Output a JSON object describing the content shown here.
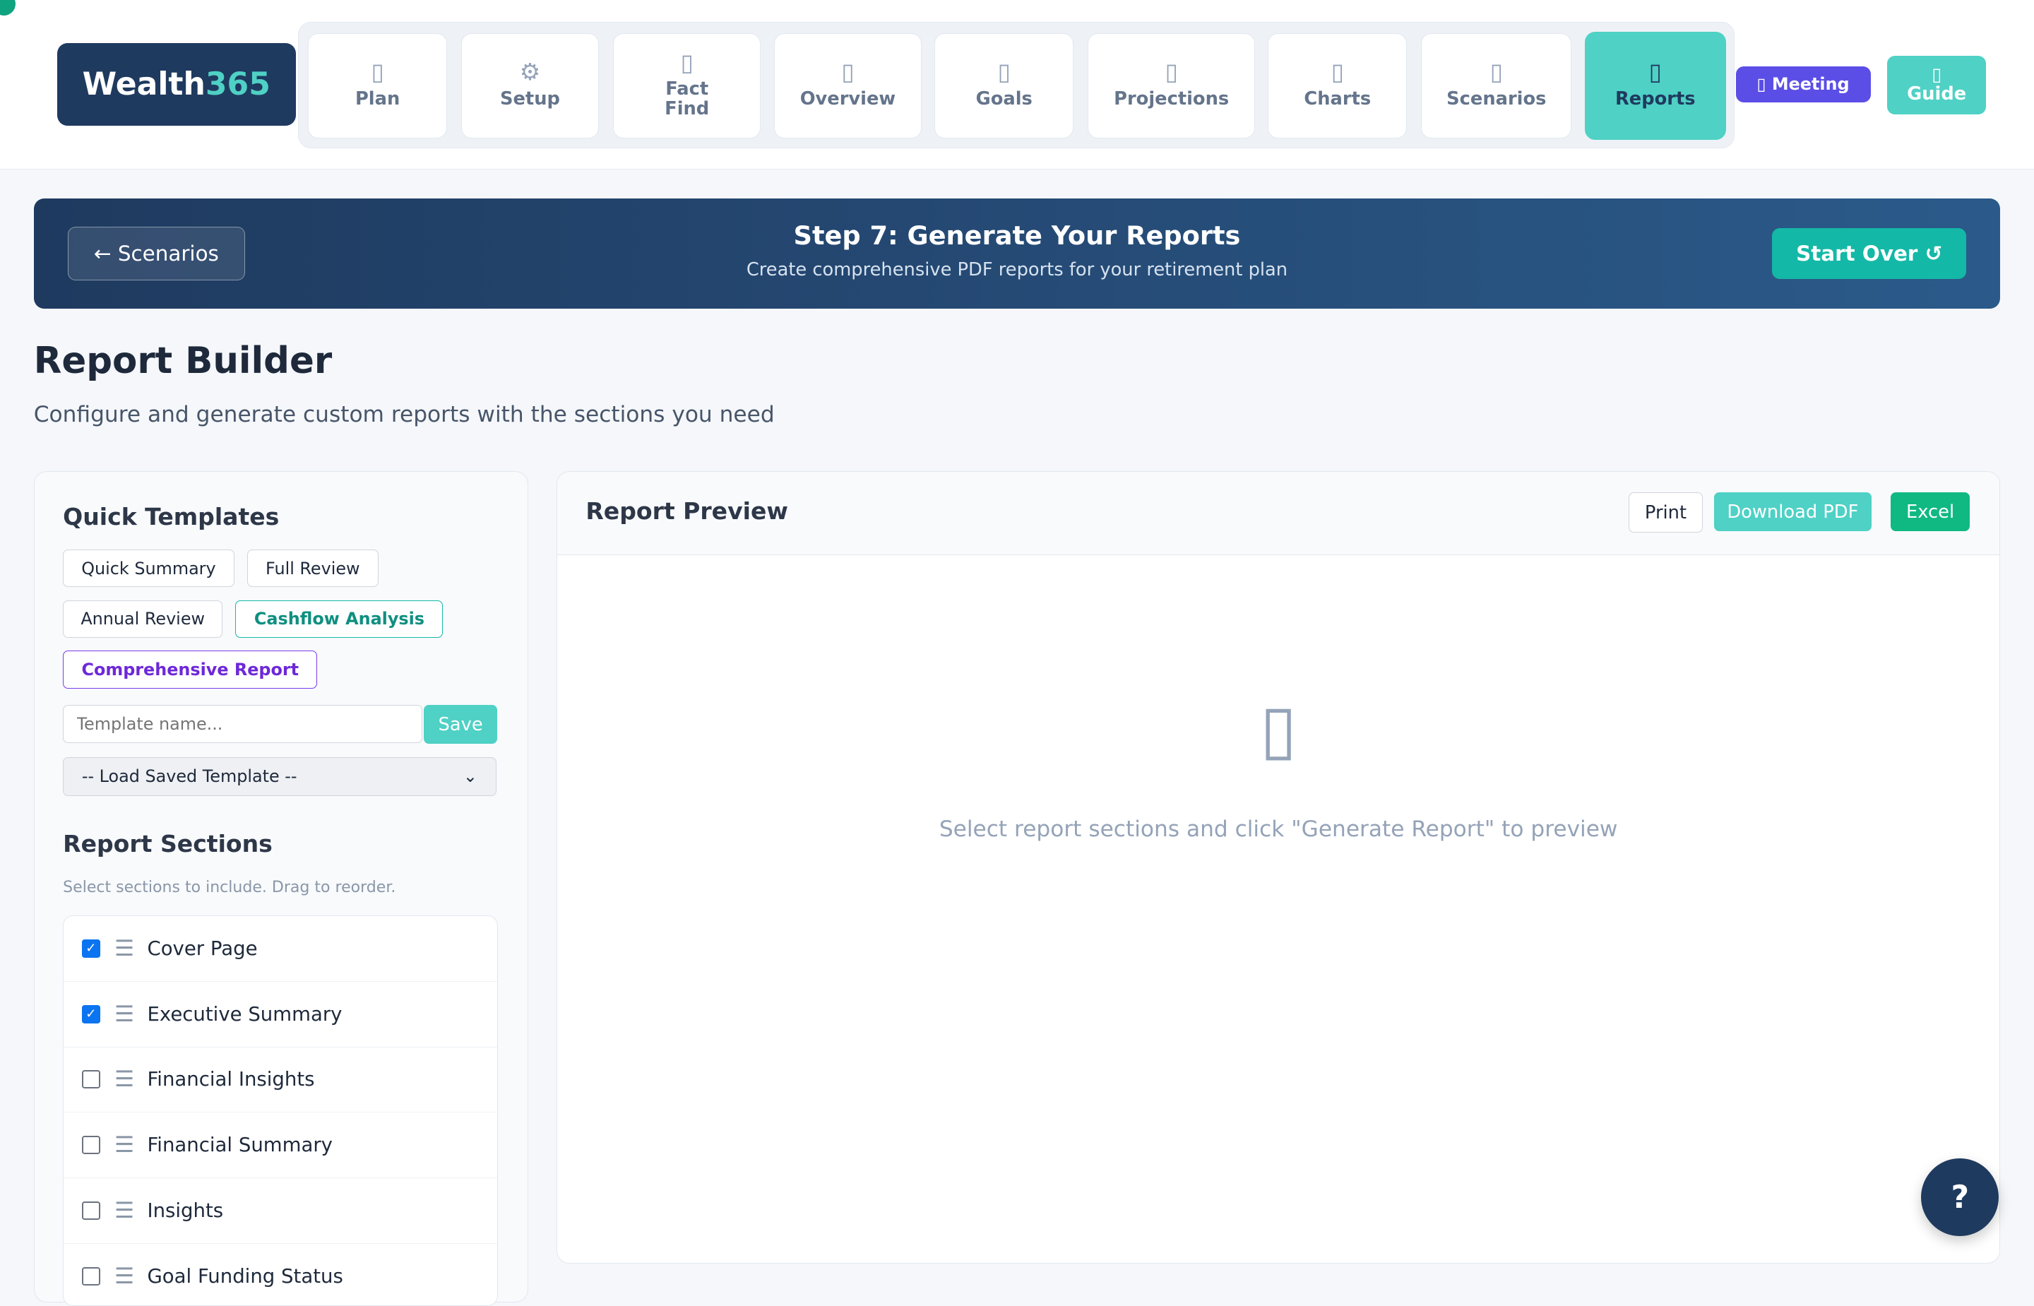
{
  "brand": {
    "name": "Wealth",
    "num": "365"
  },
  "nav": [
    {
      "label": "Plan",
      "icon": "▯"
    },
    {
      "label": "Setup",
      "icon": "⚙"
    },
    {
      "label": "Fact Find",
      "icon": "▯"
    },
    {
      "label": "Overview",
      "icon": "▯"
    },
    {
      "label": "Goals",
      "icon": "▯"
    },
    {
      "label": "Projections",
      "icon": "▯"
    },
    {
      "label": "Charts",
      "icon": "▯"
    },
    {
      "label": "Scenarios",
      "icon": "▯"
    },
    {
      "label": "Reports",
      "icon": "▯"
    }
  ],
  "meeting": "▯ Meeting",
  "guide": {
    "icon": "▯",
    "label": "Guide"
  },
  "banner": {
    "back": "← Scenarios",
    "title": "Step 7: Generate Your Reports",
    "subtitle": "Create comprehensive PDF reports for your retirement plan",
    "start_over": "Start Over ↺"
  },
  "page": {
    "title": "Report Builder",
    "subtitle": "Configure and generate custom reports with the sections you need"
  },
  "templates": {
    "title": "Quick Templates",
    "items": [
      "Quick Summary",
      "Full Review",
      "Annual Review",
      "Cashflow Analysis",
      "Comprehensive Report"
    ],
    "name_placeholder": "Template name...",
    "save": "Save",
    "load": "-- Load Saved Template --"
  },
  "sections": {
    "title": "Report Sections",
    "hint": "Select sections to include. Drag to reorder.",
    "items": [
      {
        "label": "Cover Page",
        "checked": true
      },
      {
        "label": "Executive Summary",
        "checked": true
      },
      {
        "label": "Financial Insights",
        "checked": false
      },
      {
        "label": "Financial Summary",
        "checked": false
      },
      {
        "label": "Insights",
        "checked": false
      },
      {
        "label": "Goal Funding Status",
        "checked": false
      }
    ]
  },
  "preview": {
    "title": "Report Preview",
    "print": "Print",
    "pdf": "Download PDF",
    "excel": "Excel",
    "empty_icon": "▯",
    "empty_text": "Select report sections and click \"Generate Report\" to preview"
  },
  "help": "?"
}
